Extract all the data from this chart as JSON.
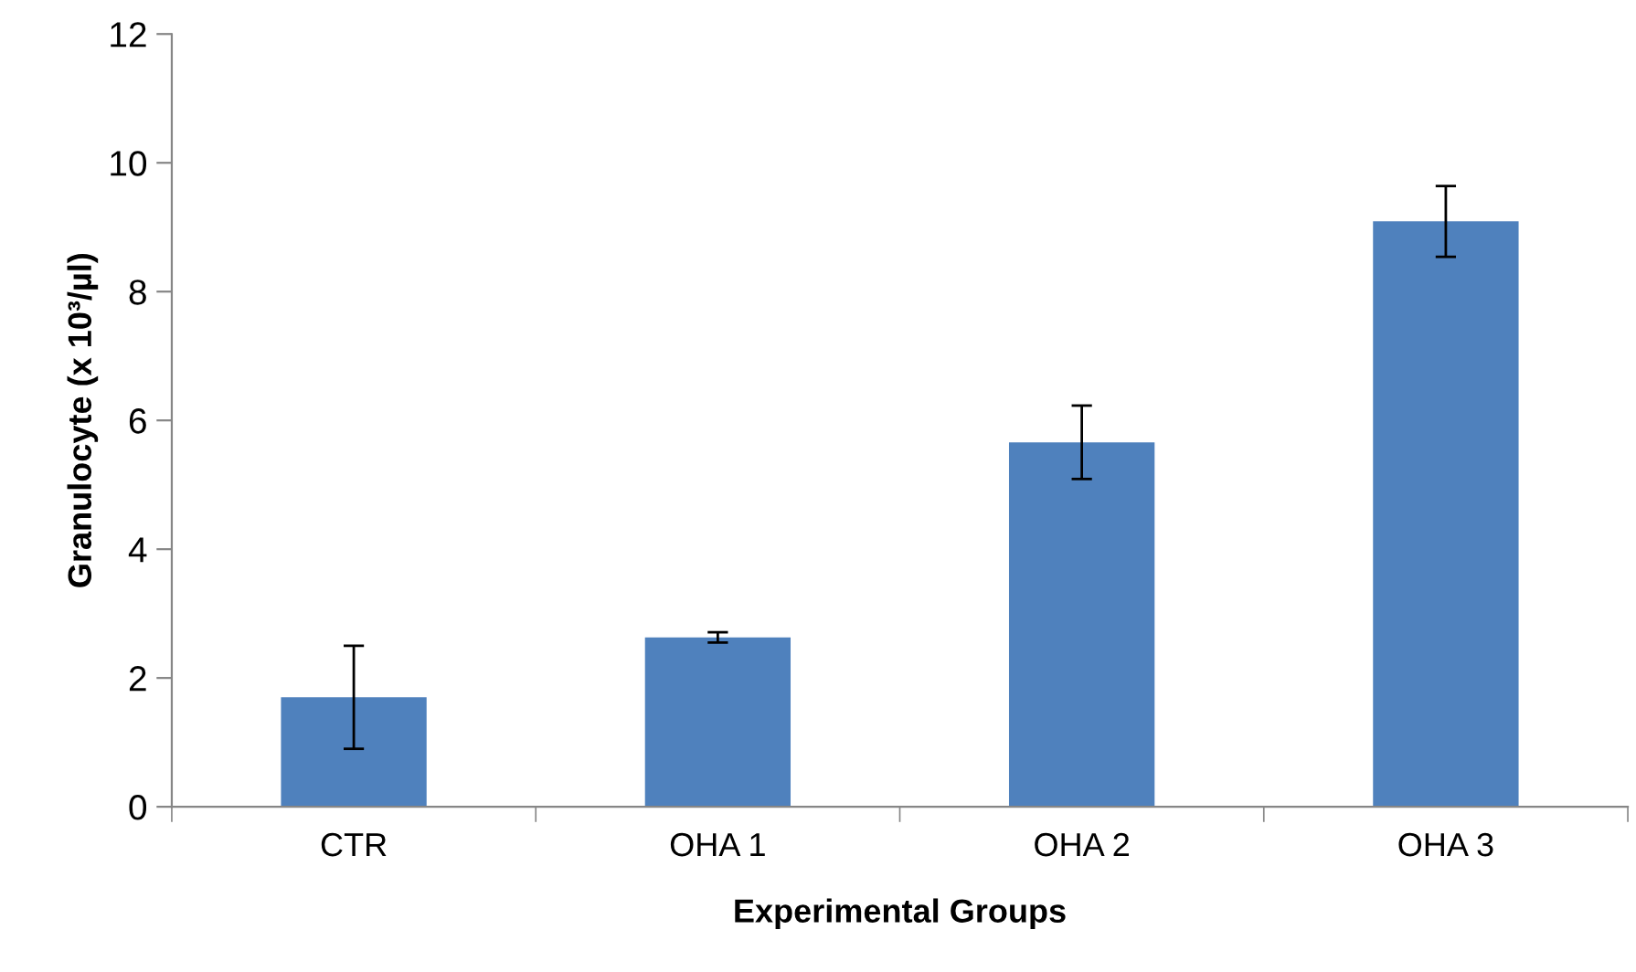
{
  "chart_data": {
    "type": "bar",
    "xlabel": "Experimental Groups",
    "ylabel": "Granulocyte (x 10³/µl)",
    "categories": [
      "CTR",
      "OHA 1",
      "OHA 2",
      "OHA 3"
    ],
    "values": [
      1.7,
      2.63,
      5.66,
      9.09
    ],
    "errors": [
      0.8,
      0.08,
      0.57,
      0.55
    ],
    "color": "#4f81bd",
    "ylim": [
      0,
      12
    ],
    "yticks": [
      0,
      2,
      4,
      6,
      8,
      10,
      12
    ],
    "grid": false
  }
}
